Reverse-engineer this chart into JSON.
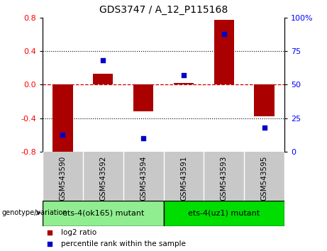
{
  "title": "GDS3747 / A_12_P115168",
  "samples": [
    "GSM543590",
    "GSM543592",
    "GSM543594",
    "GSM543591",
    "GSM543593",
    "GSM543595"
  ],
  "log2_ratio": [
    -0.82,
    0.13,
    -0.32,
    0.02,
    0.77,
    -0.38
  ],
  "percentile_rank": [
    13,
    68,
    10,
    57,
    88,
    18
  ],
  "bar_color": "#AA0000",
  "point_color": "#0000CC",
  "ylim_left": [
    -0.8,
    0.8
  ],
  "ylim_right": [
    0,
    100
  ],
  "yticks_left": [
    -0.8,
    -0.4,
    0.0,
    0.4,
    0.8
  ],
  "yticks_right": [
    0,
    25,
    50,
    75,
    100
  ],
  "yticklabels_right": [
    "0",
    "25",
    "50",
    "75",
    "100%"
  ],
  "groups": [
    {
      "label": "ets-4(ok165) mutant",
      "indices": [
        0,
        1,
        2
      ],
      "color": "#90EE90"
    },
    {
      "label": "ets-4(uz1) mutant",
      "indices": [
        3,
        4,
        5
      ],
      "color": "#00DD00"
    }
  ],
  "group_label_prefix": "genotype/variation",
  "legend_items": [
    {
      "label": "log2 ratio",
      "color": "#AA0000",
      "marker": "s"
    },
    {
      "label": "percentile rank within the sample",
      "color": "#0000CC",
      "marker": "s"
    }
  ],
  "bg_color_plot": "#FFFFFF",
  "bg_color_xtick": "#C8C8C8",
  "zero_line_color": "#CC0000",
  "grid_color": "#000000",
  "bar_width": 0.5
}
